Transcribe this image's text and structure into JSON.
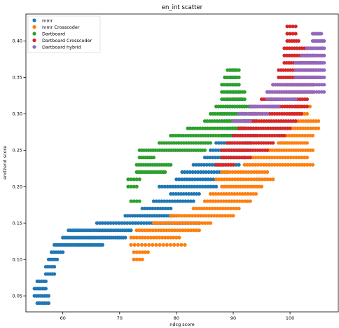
{
  "chart_data": {
    "type": "scatter",
    "title": "en_int scatter",
    "xlabel": "ndcg score",
    "ylabel": "end2end score",
    "xlim": [
      53.5,
      108.5
    ],
    "ylim": [
      0.028,
      0.437
    ],
    "x_ticks": [
      60,
      70,
      80,
      90,
      100
    ],
    "y_ticks": [
      0.05,
      0.1,
      0.15,
      0.2,
      0.25,
      0.3,
      0.35,
      0.4
    ],
    "y_tick_labels": [
      "0.05",
      "0.10",
      "0.15",
      "0.20",
      "0.25",
      "0.30",
      "0.35",
      "0.40"
    ],
    "grid": false,
    "legend_position": "top-left",
    "series": [
      {
        "name": "mmr",
        "color": "#1f77b4",
        "segments": [
          {
            "x0": 55.5,
            "x1": 57.5,
            "y": 0.04,
            "n": 6
          },
          {
            "x0": 55.0,
            "x1": 57.5,
            "y": 0.05,
            "n": 8
          },
          {
            "x0": 55.0,
            "x1": 57.0,
            "y": 0.06,
            "n": 8
          },
          {
            "x0": 55.5,
            "x1": 57.0,
            "y": 0.07,
            "n": 5
          },
          {
            "x0": 57.0,
            "x1": 58.5,
            "y": 0.08,
            "n": 5
          },
          {
            "x0": 57.0,
            "x1": 58.5,
            "y": 0.09,
            "n": 5
          },
          {
            "x0": 57.5,
            "x1": 59.0,
            "y": 0.1,
            "n": 5
          },
          {
            "x0": 58.0,
            "x1": 60.0,
            "y": 0.11,
            "n": 6
          },
          {
            "x0": 58.5,
            "x1": 67.0,
            "y": 0.12,
            "n": 26
          },
          {
            "x0": 60.0,
            "x1": 71.0,
            "y": 0.13,
            "n": 32
          },
          {
            "x0": 61.0,
            "x1": 72.0,
            "y": 0.14,
            "n": 30
          },
          {
            "x0": 66.0,
            "x1": 84.0,
            "y": 0.15,
            "n": 38
          },
          {
            "x0": 71.0,
            "x1": 80.0,
            "y": 0.16,
            "n": 22
          },
          {
            "x0": 74.0,
            "x1": 79.0,
            "y": 0.17,
            "n": 12
          },
          {
            "x0": 76.0,
            "x1": 83.0,
            "y": 0.18,
            "n": 16
          },
          {
            "x0": 79.0,
            "x1": 84.0,
            "y": 0.19,
            "n": 12
          },
          {
            "x0": 77.0,
            "x1": 87.0,
            "y": 0.2,
            "n": 22
          },
          {
            "x0": 80.0,
            "x1": 87.0,
            "y": 0.21,
            "n": 16
          },
          {
            "x0": 81.0,
            "x1": 89.0,
            "y": 0.22,
            "n": 18
          },
          {
            "x0": 83.0,
            "x1": 91.0,
            "y": 0.23,
            "n": 18
          },
          {
            "x0": 85.0,
            "x1": 92.0,
            "y": 0.24,
            "n": 16
          },
          {
            "x0": 86.0,
            "x1": 93.0,
            "y": 0.25,
            "n": 16
          },
          {
            "x0": 87.0,
            "x1": 93.0,
            "y": 0.26,
            "n": 14
          },
          {
            "x0": 88.0,
            "x1": 94.0,
            "y": 0.27,
            "n": 14
          },
          {
            "x0": 89.0,
            "x1": 94.0,
            "y": 0.28,
            "n": 12
          },
          {
            "x0": 88.0,
            "x1": 94.0,
            "y": 0.29,
            "n": 14
          },
          {
            "x0": 88.0,
            "x1": 92.0,
            "y": 0.3,
            "n": 10
          },
          {
            "x0": 89.0,
            "x1": 92.0,
            "y": 0.31,
            "n": 8
          },
          {
            "x0": 89.0,
            "x1": 91.5,
            "y": 0.32,
            "n": 6
          },
          {
            "x0": 89.0,
            "x1": 91.0,
            "y": 0.33,
            "n": 5
          },
          {
            "x0": 89.0,
            "x1": 91.0,
            "y": 0.34,
            "n": 5
          },
          {
            "x0": 89.5,
            "x1": 90.5,
            "y": 0.35,
            "n": 3
          },
          {
            "x0": 89.5,
            "x1": 90.5,
            "y": 0.36,
            "n": 3
          }
        ]
      },
      {
        "name": "mmr Crosscoder",
        "color": "#ff7f0e",
        "segments": [
          {
            "x0": 72.5,
            "x1": 74.0,
            "y": 0.1,
            "n": 4
          },
          {
            "x0": 72.5,
            "x1": 75.0,
            "y": 0.11,
            "n": 6
          },
          {
            "x0": 72.0,
            "x1": 81.5,
            "y": 0.12,
            "n": 16
          },
          {
            "x0": 72.0,
            "x1": 80.5,
            "y": 0.13,
            "n": 18
          },
          {
            "x0": 73.0,
            "x1": 84.0,
            "y": 0.14,
            "n": 24
          },
          {
            "x0": 76.0,
            "x1": 86.0,
            "y": 0.15,
            "n": 22
          },
          {
            "x0": 79.0,
            "x1": 90.0,
            "y": 0.16,
            "n": 24
          },
          {
            "x0": 83.0,
            "x1": 91.0,
            "y": 0.17,
            "n": 18
          },
          {
            "x0": 85.0,
            "x1": 93.0,
            "y": 0.18,
            "n": 18
          },
          {
            "x0": 86.0,
            "x1": 94.0,
            "y": 0.19,
            "n": 18
          },
          {
            "x0": 88.0,
            "x1": 95.0,
            "y": 0.2,
            "n": 18
          },
          {
            "x0": 87.0,
            "x1": 97.0,
            "y": 0.21,
            "n": 22
          },
          {
            "x0": 88.0,
            "x1": 96.0,
            "y": 0.22,
            "n": 18
          },
          {
            "x0": 92.0,
            "x1": 104.0,
            "y": 0.23,
            "n": 26
          },
          {
            "x0": 93.0,
            "x1": 103.0,
            "y": 0.24,
            "n": 22
          },
          {
            "x0": 96.0,
            "x1": 104.0,
            "y": 0.25,
            "n": 20
          },
          {
            "x0": 98.0,
            "x1": 103.0,
            "y": 0.26,
            "n": 14
          },
          {
            "x0": 98.0,
            "x1": 104.0,
            "y": 0.27,
            "n": 14
          },
          {
            "x0": 100.0,
            "x1": 105.0,
            "y": 0.28,
            "n": 12
          },
          {
            "x0": 101.0,
            "x1": 105.0,
            "y": 0.29,
            "n": 10
          },
          {
            "x0": 100.0,
            "x1": 103.0,
            "y": 0.3,
            "n": 8
          },
          {
            "x0": 101.0,
            "x1": 103.5,
            "y": 0.31,
            "n": 6
          }
        ]
      },
      {
        "name": "Dartboard",
        "color": "#2ca02c",
        "segments": [
          {
            "x0": 72.0,
            "x1": 73.5,
            "y": 0.18,
            "n": 4
          },
          {
            "x0": 71.5,
            "x1": 73.0,
            "y": 0.2,
            "n": 4
          },
          {
            "x0": 71.5,
            "x1": 73.5,
            "y": 0.21,
            "n": 5
          },
          {
            "x0": 73.0,
            "x1": 78.0,
            "y": 0.22,
            "n": 16
          },
          {
            "x0": 73.0,
            "x1": 79.0,
            "y": 0.23,
            "n": 16
          },
          {
            "x0": 73.5,
            "x1": 76.0,
            "y": 0.24,
            "n": 8
          },
          {
            "x0": 73.5,
            "x1": 85.0,
            "y": 0.25,
            "n": 30
          },
          {
            "x0": 77.0,
            "x1": 86.0,
            "y": 0.26,
            "n": 22
          },
          {
            "x0": 79.0,
            "x1": 90.0,
            "y": 0.27,
            "n": 26
          },
          {
            "x0": 82.0,
            "x1": 92.0,
            "y": 0.28,
            "n": 24
          },
          {
            "x0": 85.0,
            "x1": 94.0,
            "y": 0.29,
            "n": 22
          },
          {
            "x0": 86.0,
            "x1": 94.0,
            "y": 0.3,
            "n": 20
          },
          {
            "x0": 87.0,
            "x1": 94.0,
            "y": 0.31,
            "n": 18
          },
          {
            "x0": 88.0,
            "x1": 92.0,
            "y": 0.32,
            "n": 12
          },
          {
            "x0": 88.0,
            "x1": 92.0,
            "y": 0.33,
            "n": 12
          },
          {
            "x0": 88.0,
            "x1": 91.0,
            "y": 0.34,
            "n": 9
          },
          {
            "x0": 88.5,
            "x1": 91.0,
            "y": 0.35,
            "n": 7
          },
          {
            "x0": 89.0,
            "x1": 91.0,
            "y": 0.36,
            "n": 6
          }
        ]
      },
      {
        "name": "Dartboard Crosscoder",
        "color": "#d62728",
        "segments": [
          {
            "x0": 87.0,
            "x1": 90.0,
            "y": 0.23,
            "n": 8
          },
          {
            "x0": 88.0,
            "x1": 93.0,
            "y": 0.24,
            "n": 14
          },
          {
            "x0": 88.0,
            "x1": 96.0,
            "y": 0.25,
            "n": 20
          },
          {
            "x0": 89.0,
            "x1": 97.0,
            "y": 0.26,
            "n": 20
          },
          {
            "x0": 90.0,
            "x1": 99.0,
            "y": 0.27,
            "n": 22
          },
          {
            "x0": 91.0,
            "x1": 100.0,
            "y": 0.28,
            "n": 22
          },
          {
            "x0": 92.0,
            "x1": 101.0,
            "y": 0.29,
            "n": 22
          },
          {
            "x0": 93.0,
            "x1": 102.0,
            "y": 0.3,
            "n": 22
          },
          {
            "x0": 93.0,
            "x1": 103.0,
            "y": 0.31,
            "n": 24
          },
          {
            "x0": 95.0,
            "x1": 103.0,
            "y": 0.32,
            "n": 20
          },
          {
            "x0": 96.0,
            "x1": 104.0,
            "y": 0.33,
            "n": 20
          },
          {
            "x0": 97.0,
            "x1": 104.0,
            "y": 0.34,
            "n": 18
          },
          {
            "x0": 98.0,
            "x1": 105.0,
            "y": 0.35,
            "n": 18
          },
          {
            "x0": 98.0,
            "x1": 105.0,
            "y": 0.36,
            "n": 18
          },
          {
            "x0": 99.0,
            "x1": 105.0,
            "y": 0.37,
            "n": 16
          },
          {
            "x0": 99.0,
            "x1": 104.0,
            "y": 0.38,
            "n": 12
          },
          {
            "x0": 99.0,
            "x1": 103.0,
            "y": 0.39,
            "n": 10
          },
          {
            "x0": 99.5,
            "x1": 101.5,
            "y": 0.4,
            "n": 6
          },
          {
            "x0": 99.5,
            "x1": 101.0,
            "y": 0.41,
            "n": 4
          },
          {
            "x0": 99.5,
            "x1": 101.0,
            "y": 0.42,
            "n": 4
          }
        ]
      },
      {
        "name": "Dartboard hybrid",
        "color": "#9467bd",
        "segments": [
          {
            "x0": 90.0,
            "x1": 93.0,
            "y": 0.29,
            "n": 8
          },
          {
            "x0": 91.0,
            "x1": 96.0,
            "y": 0.3,
            "n": 12
          },
          {
            "x0": 93.0,
            "x1": 98.0,
            "y": 0.31,
            "n": 12
          },
          {
            "x0": 96.0,
            "x1": 101.0,
            "y": 0.32,
            "n": 12
          },
          {
            "x0": 96.0,
            "x1": 106.0,
            "y": 0.33,
            "n": 24
          },
          {
            "x0": 97.0,
            "x1": 106.0,
            "y": 0.34,
            "n": 22
          },
          {
            "x0": 101.0,
            "x1": 106.0,
            "y": 0.35,
            "n": 16
          },
          {
            "x0": 101.0,
            "x1": 106.0,
            "y": 0.36,
            "n": 16
          },
          {
            "x0": 101.0,
            "x1": 106.0,
            "y": 0.37,
            "n": 16
          },
          {
            "x0": 102.0,
            "x1": 106.0,
            "y": 0.38,
            "n": 14
          },
          {
            "x0": 103.0,
            "x1": 106.0,
            "y": 0.39,
            "n": 10
          },
          {
            "x0": 104.0,
            "x1": 106.0,
            "y": 0.4,
            "n": 8
          },
          {
            "x0": 104.0,
            "x1": 105.5,
            "y": 0.41,
            "n": 6
          }
        ]
      }
    ]
  }
}
